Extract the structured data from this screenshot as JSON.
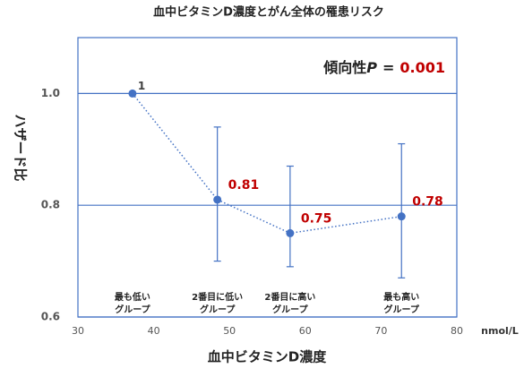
{
  "chart_data": {
    "type": "scatter",
    "title": "血中ビタミンD濃度とがん全体の罹患リスク",
    "x_label": "血中ビタミンD濃度",
    "x_unit": "nmol/L",
    "y_label": "ハザード比",
    "annotation": {
      "prefix": "傾向性",
      "symbol": "P",
      "equals": "=",
      "value": "0.001",
      "value_color": "#c00000"
    },
    "x": [
      37.2,
      48.4,
      58.0,
      72.7
    ],
    "values": [
      1,
      0.81,
      0.75,
      0.78
    ],
    "lower": [
      null,
      0.7,
      0.69,
      0.67
    ],
    "upper": [
      null,
      0.94,
      0.87,
      0.91
    ],
    "label_colors": [
      "#404040",
      "#c00000",
      "#c00000",
      "#c00000"
    ],
    "categories": [
      [
        "最も低い",
        "グループ"
      ],
      [
        "2番目に低い",
        "グループ"
      ],
      [
        "2番目に高い",
        "グループ"
      ],
      [
        "最も高い",
        "グループ"
      ]
    ],
    "color": "#4472c4",
    "line_style": "dotted",
    "xlim": [
      30,
      80
    ],
    "xticks": [
      30,
      40,
      50,
      60,
      70,
      80
    ],
    "ylim": [
      0.6,
      1.1
    ],
    "yticks": [
      0.6,
      0.8,
      {
        "value": 1,
        "label": "1.0"
      }
    ],
    "grid": true
  }
}
